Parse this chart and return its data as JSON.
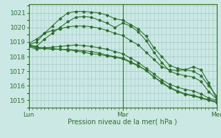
{
  "title": "",
  "xlabel": "Pression niveau de la mer( hPa )",
  "ylabel": "",
  "bg_color": "#cce8e4",
  "grid_color": "#a0ccc8",
  "line_color": "#2d6e2d",
  "ylim": [
    1014.5,
    1021.6
  ],
  "xlim": [
    0,
    48
  ],
  "yticks": [
    1015,
    1016,
    1017,
    1018,
    1019,
    1020,
    1021
  ],
  "xtick_positions": [
    0,
    24,
    48
  ],
  "xtick_labels": [
    "Lun",
    "Mar",
    "Mer"
  ],
  "minor_xtick_interval": 1,
  "lines": [
    [
      0,
      1018.8,
      2,
      1019.0,
      4,
      1019.6,
      6,
      1020.1,
      8,
      1020.6,
      10,
      1021.0,
      12,
      1021.1,
      14,
      1021.1,
      16,
      1021.05,
      18,
      1021.0,
      20,
      1020.85,
      22,
      1020.6,
      24,
      1020.5,
      26,
      1020.2,
      28,
      1019.9,
      30,
      1019.4,
      32,
      1018.6,
      34,
      1018.0,
      36,
      1017.4,
      38,
      1017.2,
      40,
      1017.1,
      42,
      1017.3,
      44,
      1017.1,
      46,
      1016.2,
      48,
      1015.1
    ],
    [
      0,
      1018.8,
      2,
      1018.7,
      4,
      1019.2,
      6,
      1019.6,
      8,
      1020.0,
      10,
      1020.4,
      12,
      1020.7,
      14,
      1020.75,
      16,
      1020.7,
      18,
      1020.5,
      20,
      1020.3,
      22,
      1020.0,
      24,
      1020.3,
      26,
      1020.1,
      28,
      1019.7,
      30,
      1019.1,
      32,
      1018.3,
      34,
      1017.6,
      36,
      1017.0,
      38,
      1016.8,
      40,
      1016.7,
      42,
      1016.6,
      44,
      1016.3,
      46,
      1015.6,
      48,
      1015.1
    ],
    [
      0,
      1018.9,
      2,
      1019.2,
      4,
      1019.6,
      6,
      1019.8,
      8,
      1019.9,
      10,
      1020.05,
      12,
      1020.1,
      14,
      1020.1,
      16,
      1020.05,
      18,
      1019.95,
      20,
      1019.8,
      22,
      1019.6,
      24,
      1019.45,
      26,
      1019.1,
      28,
      1018.8,
      30,
      1018.3,
      32,
      1017.8,
      34,
      1017.3,
      36,
      1017.1,
      38,
      1017.05,
      40,
      1017.1,
      42,
      1017.0,
      44,
      1016.7,
      46,
      1016.0,
      48,
      1015.3
    ],
    [
      0,
      1018.7,
      2,
      1018.5,
      4,
      1018.6,
      6,
      1018.65,
      8,
      1018.7,
      10,
      1018.75,
      12,
      1018.8,
      14,
      1018.75,
      16,
      1018.7,
      18,
      1018.6,
      20,
      1018.5,
      22,
      1018.35,
      24,
      1018.2,
      26,
      1017.9,
      28,
      1017.6,
      30,
      1017.2,
      32,
      1016.8,
      34,
      1016.4,
      36,
      1016.1,
      38,
      1015.9,
      40,
      1015.75,
      42,
      1015.65,
      44,
      1015.45,
      46,
      1015.15,
      48,
      1015.0
    ],
    [
      0,
      1018.75,
      2,
      1018.6,
      4,
      1018.55,
      6,
      1018.5,
      8,
      1018.5,
      10,
      1018.45,
      12,
      1018.4,
      14,
      1018.3,
      16,
      1018.2,
      18,
      1018.15,
      20,
      1018.05,
      22,
      1017.95,
      24,
      1017.85,
      26,
      1017.6,
      28,
      1017.35,
      30,
      1017.05,
      32,
      1016.6,
      34,
      1016.25,
      36,
      1015.9,
      38,
      1015.65,
      40,
      1015.45,
      42,
      1015.35,
      44,
      1015.2,
      46,
      1015.05,
      48,
      1014.9
    ],
    [
      0,
      1018.8,
      2,
      1018.65,
      4,
      1018.6,
      6,
      1018.55,
      8,
      1018.5,
      10,
      1018.5,
      12,
      1018.45,
      14,
      1018.4,
      16,
      1018.35,
      18,
      1018.25,
      20,
      1018.1,
      22,
      1018.0,
      24,
      1017.9,
      26,
      1017.65,
      28,
      1017.4,
      30,
      1017.05,
      32,
      1016.6,
      34,
      1016.2,
      36,
      1015.85,
      38,
      1015.6,
      40,
      1015.4,
      42,
      1015.3,
      44,
      1015.15,
      46,
      1015.0,
      48,
      1014.85
    ]
  ]
}
